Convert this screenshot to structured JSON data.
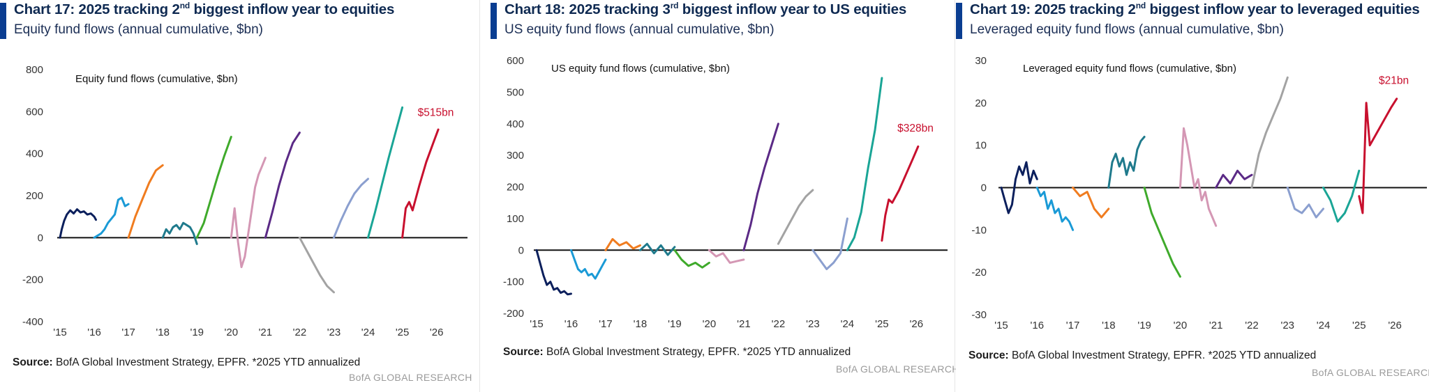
{
  "chart_data": [
    {
      "type": "line",
      "title_prefix": "Chart 17: 2025 tracking 2",
      "title_sup": "nd",
      "title_suffix": " biggest inflow year to equities",
      "subtitle": "Equity fund flows (annual cumulative, $bn)",
      "inner_title": "Equity fund flows (cumulative, $bn)",
      "ylim": [
        -400,
        800
      ],
      "yticks": [
        -400,
        -200,
        0,
        200,
        400,
        600,
        800
      ],
      "ytick_labels": [
        "-400",
        "-200",
        "0",
        "200",
        "400",
        "600",
        "800"
      ],
      "xlim": [
        15,
        26.7
      ],
      "xticks": [
        15,
        16,
        17,
        18,
        19,
        20,
        21,
        22,
        23,
        24,
        25,
        26
      ],
      "xtick_labels": [
        "'15",
        "'16",
        "'17",
        "'18",
        "'19",
        "'20",
        "'21",
        "'22",
        "'23",
        "'24",
        "'25",
        "'26"
      ],
      "end_label": "$515bn",
      "end_label_at": [
        25.45,
        580
      ],
      "source_label": "Source:",
      "source_text": " BofA Global Investment Strategy, EPFR. *2025 YTD annualized",
      "brand": "BofA GLOBAL RESEARCH",
      "series": [
        {
          "name": "2015",
          "color": "#0b1f5c",
          "x": [
            15,
            15.05,
            15.12,
            15.2,
            15.3,
            15.4,
            15.5,
            15.6,
            15.7,
            15.8,
            15.9,
            16.0,
            16.05
          ],
          "y": [
            0,
            40,
            80,
            110,
            130,
            115,
            135,
            120,
            125,
            110,
            115,
            100,
            85
          ]
        },
        {
          "name": "2016",
          "color": "#1a9ad6",
          "x": [
            16,
            16.1,
            16.2,
            16.3,
            16.4,
            16.5,
            16.6,
            16.7,
            16.8,
            16.9,
            17.0
          ],
          "y": [
            0,
            10,
            20,
            40,
            70,
            90,
            110,
            180,
            190,
            150,
            160
          ]
        },
        {
          "name": "2017",
          "color": "#f07c1f",
          "x": [
            17,
            17.2,
            17.4,
            17.6,
            17.8,
            18.0
          ],
          "y": [
            0,
            100,
            180,
            260,
            320,
            345
          ]
        },
        {
          "name": "2018",
          "color": "#1f7a8c",
          "x": [
            18,
            18.1,
            18.2,
            18.3,
            18.4,
            18.5,
            18.6,
            18.7,
            18.8,
            18.9,
            19.0
          ],
          "y": [
            0,
            40,
            20,
            50,
            60,
            40,
            70,
            60,
            50,
            20,
            -30
          ]
        },
        {
          "name": "2019",
          "color": "#3faa2b",
          "x": [
            19,
            19.2,
            19.4,
            19.6,
            19.8,
            20.0
          ],
          "y": [
            0,
            70,
            180,
            290,
            390,
            480
          ]
        },
        {
          "name": "2020",
          "color": "#d497b4",
          "x": [
            20,
            20.1,
            20.2,
            20.3,
            20.4,
            20.5,
            20.6,
            20.7,
            20.8,
            20.9,
            21.0
          ],
          "y": [
            0,
            140,
            -20,
            -140,
            -90,
            20,
            130,
            240,
            300,
            340,
            380
          ]
        },
        {
          "name": "2021",
          "color": "#5b2a86",
          "x": [
            21,
            21.2,
            21.4,
            21.6,
            21.8,
            22.0
          ],
          "y": [
            0,
            120,
            250,
            360,
            450,
            500
          ]
        },
        {
          "name": "2022",
          "color": "#a3a3a3",
          "x": [
            22,
            22.2,
            22.4,
            22.6,
            22.8,
            23.0
          ],
          "y": [
            0,
            -60,
            -120,
            -180,
            -230,
            -260
          ]
        },
        {
          "name": "2023",
          "color": "#8b9fcf",
          "x": [
            23,
            23.2,
            23.4,
            23.6,
            23.8,
            24.0
          ],
          "y": [
            0,
            80,
            150,
            210,
            250,
            280
          ]
        },
        {
          "name": "2024",
          "color": "#1aa596",
          "x": [
            24,
            24.2,
            24.4,
            24.6,
            24.8,
            25.0
          ],
          "y": [
            0,
            120,
            250,
            380,
            500,
            620
          ]
        },
        {
          "name": "2025",
          "color": "#c8102e",
          "x": [
            25,
            25.1,
            25.2,
            25.3,
            25.5,
            25.7,
            25.9,
            26.05
          ],
          "y": [
            0,
            140,
            170,
            130,
            250,
            360,
            450,
            515
          ]
        }
      ]
    },
    {
      "type": "line",
      "title_prefix": "Chart 18: 2025 tracking 3",
      "title_sup": "rd",
      "title_suffix": " biggest inflow year to US equities",
      "subtitle": "US equity fund flows (annual cumulative, $bn)",
      "inner_title": "US equity fund flows (cumulative, $bn)",
      "ylim": [
        -200,
        600
      ],
      "yticks": [
        -200,
        -100,
        0,
        100,
        200,
        300,
        400,
        500,
        600
      ],
      "ytick_labels": [
        "-200",
        "-100",
        "0",
        "100",
        "200",
        "300",
        "400",
        "500",
        "600"
      ],
      "xlim": [
        15,
        26.7
      ],
      "xticks": [
        15,
        16,
        17,
        18,
        19,
        20,
        21,
        22,
        23,
        24,
        25,
        26
      ],
      "xtick_labels": [
        "'15",
        "'16",
        "'17",
        "'18",
        "'19",
        "'20",
        "'21",
        "'22",
        "'23",
        "'24",
        "'25",
        "'26"
      ],
      "end_label": "$328bn",
      "end_label_at": [
        25.45,
        375
      ],
      "source_label": "Source:",
      "source_text": " BofA Global Investment Strategy, EPFR. *2025 YTD annualized",
      "brand": "BofA GLOBAL RESEARCH",
      "series": [
        {
          "name": "2015",
          "color": "#0b1f5c",
          "x": [
            15,
            15.1,
            15.2,
            15.3,
            15.4,
            15.5,
            15.6,
            15.7,
            15.8,
            15.9,
            16.0
          ],
          "y": [
            0,
            -40,
            -80,
            -110,
            -100,
            -125,
            -120,
            -135,
            -130,
            -140,
            -138
          ]
        },
        {
          "name": "2016",
          "color": "#1a9ad6",
          "x": [
            16,
            16.1,
            16.2,
            16.3,
            16.4,
            16.5,
            16.6,
            16.7,
            16.8,
            16.9,
            17.0
          ],
          "y": [
            0,
            -30,
            -60,
            -70,
            -60,
            -80,
            -75,
            -90,
            -70,
            -50,
            -30
          ]
        },
        {
          "name": "2017",
          "color": "#f07c1f",
          "x": [
            17,
            17.2,
            17.4,
            17.6,
            17.8,
            18.0
          ],
          "y": [
            0,
            35,
            15,
            25,
            5,
            15
          ]
        },
        {
          "name": "2018",
          "color": "#1f7a8c",
          "x": [
            18,
            18.2,
            18.4,
            18.6,
            18.8,
            19.0
          ],
          "y": [
            0,
            20,
            -10,
            15,
            -15,
            10
          ]
        },
        {
          "name": "2019",
          "color": "#3faa2b",
          "x": [
            19,
            19.2,
            19.4,
            19.6,
            19.8,
            20.0
          ],
          "y": [
            0,
            -30,
            -50,
            -40,
            -55,
            -40
          ]
        },
        {
          "name": "2020",
          "color": "#d497b4",
          "x": [
            20,
            20.2,
            20.4,
            20.6,
            20.8,
            21.0
          ],
          "y": [
            0,
            -20,
            -10,
            -40,
            -35,
            -30
          ]
        },
        {
          "name": "2021",
          "color": "#5b2a86",
          "x": [
            21,
            21.2,
            21.4,
            21.6,
            21.8,
            22.0
          ],
          "y": [
            0,
            80,
            180,
            260,
            330,
            400
          ]
        },
        {
          "name": "2022",
          "color": "#a3a3a3",
          "x": [
            22,
            22.2,
            22.4,
            22.6,
            22.8,
            23.0
          ],
          "y": [
            20,
            60,
            100,
            140,
            170,
            190
          ]
        },
        {
          "name": "2023",
          "color": "#8b9fcf",
          "x": [
            23,
            23.2,
            23.4,
            23.6,
            23.8,
            24.0
          ],
          "y": [
            0,
            -30,
            -60,
            -40,
            -10,
            100
          ]
        },
        {
          "name": "2024",
          "color": "#1aa596",
          "x": [
            24,
            24.2,
            24.4,
            24.6,
            24.8,
            25.0
          ],
          "y": [
            0,
            40,
            120,
            260,
            380,
            545
          ]
        },
        {
          "name": "2025",
          "color": "#c8102e",
          "x": [
            25,
            25.1,
            25.2,
            25.3,
            25.5,
            25.7,
            25.9,
            26.05
          ],
          "y": [
            30,
            110,
            160,
            150,
            190,
            240,
            290,
            328
          ]
        }
      ]
    },
    {
      "type": "line",
      "title_prefix": "Chart 19: 2025 tracking 2",
      "title_sup": "nd",
      "title_suffix": " biggest inflow year to leveraged equities",
      "subtitle": "Leveraged equity fund flows (annual cumulative, $bn)",
      "inner_title": "Leveraged equity fund flows (cumulative, $bn)",
      "ylim": [
        -30,
        30
      ],
      "yticks": [
        -30,
        -20,
        -10,
        0,
        10,
        20,
        30
      ],
      "ytick_labels": [
        "-30",
        "-20",
        "-10",
        "0",
        "10",
        "20",
        "30"
      ],
      "xlim": [
        15,
        26.7
      ],
      "xticks": [
        15,
        16,
        17,
        18,
        19,
        20,
        21,
        22,
        23,
        24,
        25,
        26
      ],
      "xtick_labels": [
        "'15",
        "'16",
        "'17",
        "'18",
        "'19",
        "'20",
        "'21",
        "'22",
        "'23",
        "'24",
        "'25",
        "'26"
      ],
      "end_label": "$21bn",
      "end_label_at": [
        25.55,
        24.5
      ],
      "source_label": "Source:",
      "source_text": " BofA Global Investment Strategy, EPFR. *2025 YTD annualized",
      "brand": "BofA GLOBAL RESEARCH",
      "series": [
        {
          "name": "2015",
          "color": "#0b1f5c",
          "x": [
            15,
            15.1,
            15.2,
            15.3,
            15.4,
            15.5,
            15.6,
            15.7,
            15.8,
            15.9,
            16.0
          ],
          "y": [
            0,
            -3,
            -6,
            -4,
            2,
            5,
            3,
            6,
            1,
            4,
            2
          ]
        },
        {
          "name": "2016",
          "color": "#1a9ad6",
          "x": [
            16,
            16.1,
            16.2,
            16.3,
            16.4,
            16.5,
            16.6,
            16.7,
            16.8,
            16.9,
            17.0
          ],
          "y": [
            0,
            -2,
            -1,
            -5,
            -3,
            -6,
            -5,
            -8,
            -7,
            -8,
            -10
          ]
        },
        {
          "name": "2017",
          "color": "#f07c1f",
          "x": [
            17,
            17.2,
            17.4,
            17.6,
            17.8,
            18.0
          ],
          "y": [
            0,
            -2,
            -1,
            -5,
            -7,
            -5
          ]
        },
        {
          "name": "2018",
          "color": "#1f7a8c",
          "x": [
            18,
            18.1,
            18.2,
            18.3,
            18.4,
            18.5,
            18.6,
            18.7,
            18.8,
            18.9,
            19.0
          ],
          "y": [
            0,
            6,
            8,
            5,
            7,
            3,
            6,
            4,
            9,
            11,
            12
          ]
        },
        {
          "name": "2019",
          "color": "#3faa2b",
          "x": [
            19,
            19.2,
            19.4,
            19.6,
            19.8,
            20.0
          ],
          "y": [
            0,
            -6,
            -10,
            -14,
            -18,
            -21
          ]
        },
        {
          "name": "2020",
          "color": "#d497b4",
          "x": [
            20,
            20.1,
            20.2,
            20.3,
            20.4,
            20.5,
            20.6,
            20.7,
            20.8,
            20.9,
            21.0
          ],
          "y": [
            0,
            14,
            10,
            5,
            0,
            2,
            -3,
            -1,
            -5,
            -7,
            -9
          ]
        },
        {
          "name": "2021",
          "color": "#5b2a86",
          "x": [
            21,
            21.2,
            21.4,
            21.6,
            21.8,
            22.0
          ],
          "y": [
            0,
            3,
            1,
            4,
            2,
            3
          ]
        },
        {
          "name": "2022",
          "color": "#a3a3a3",
          "x": [
            22,
            22.2,
            22.4,
            22.6,
            22.8,
            23.0
          ],
          "y": [
            0,
            8,
            13,
            17,
            21,
            26
          ]
        },
        {
          "name": "2023",
          "color": "#8b9fcf",
          "x": [
            23,
            23.2,
            23.4,
            23.6,
            23.8,
            24.0
          ],
          "y": [
            0,
            -5,
            -6,
            -4,
            -7,
            -5
          ]
        },
        {
          "name": "2024",
          "color": "#1aa596",
          "x": [
            24,
            24.2,
            24.4,
            24.6,
            24.8,
            25.0
          ],
          "y": [
            0,
            -3,
            -8,
            -6,
            -2,
            4
          ]
        },
        {
          "name": "2025",
          "color": "#c8102e",
          "x": [
            25,
            25.1,
            25.2,
            25.3,
            25.5,
            25.7,
            25.9,
            26.05
          ],
          "y": [
            -2,
            -6,
            20,
            10,
            13,
            16,
            19,
            21
          ]
        }
      ]
    }
  ]
}
